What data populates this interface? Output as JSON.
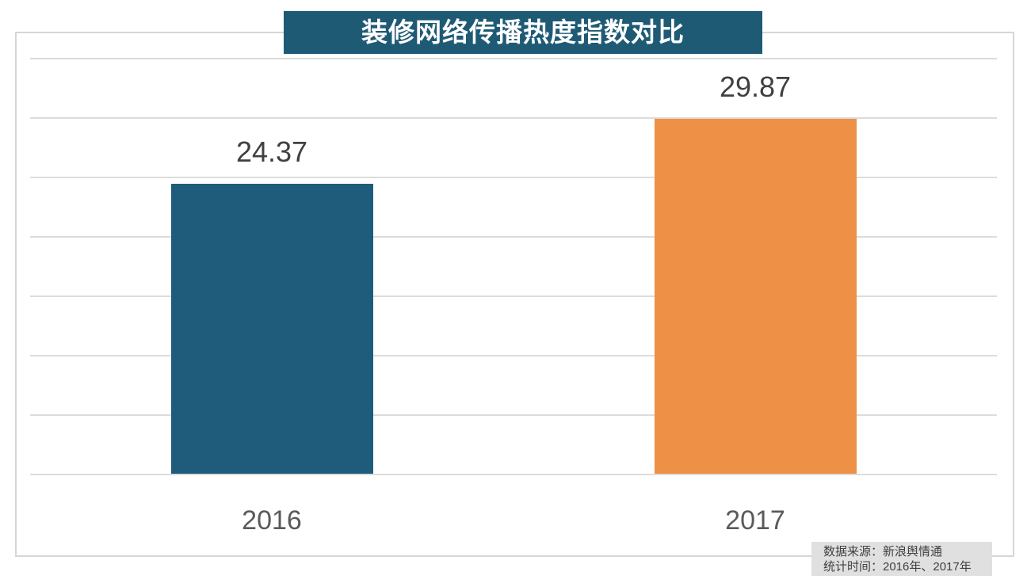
{
  "title": "装修网络传播热度指数对比",
  "chart_data": {
    "type": "bar",
    "title": "装修网络传播热度指数对比",
    "categories": [
      "2016",
      "2017"
    ],
    "values": [
      24.37,
      29.87
    ],
    "value_labels": [
      "24.37",
      "29.87"
    ],
    "bar_colors": [
      "#1f5c7c",
      "#ee9045"
    ],
    "xlabel": "",
    "ylabel": "",
    "ylim": [
      0,
      35
    ],
    "grid_step": 5,
    "grid": true,
    "y_tick_labels_visible": false,
    "legend": "none"
  },
  "footnote": {
    "source_line": "数据来源：新浪舆情通",
    "period_line": "统计时间：2016年、2017年"
  },
  "colors": {
    "background": "#ffffff",
    "banner_bg": "#1f5a75",
    "banner_text": "#ffffff",
    "frame_border": "#d6d6d6",
    "gridline": "#dcdcdc",
    "value_label": "#404040",
    "category_label": "#5a5a5a",
    "footnote_bg": "#e0e0e0",
    "footnote_text": "#3f3f3f"
  }
}
